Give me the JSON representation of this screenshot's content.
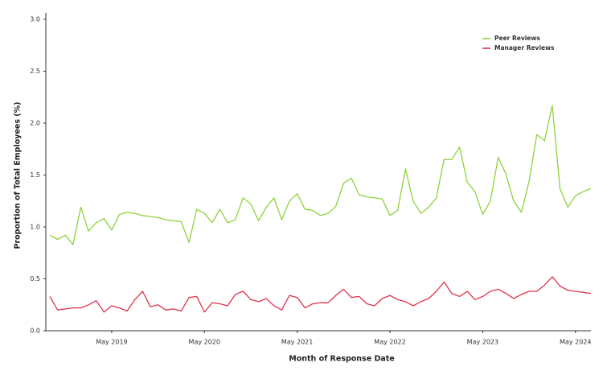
{
  "chart_data": {
    "type": "line",
    "x_label": "Month of Response Date",
    "y_label": "Proportion of Total Employees (%)",
    "x": [
      "2018-09",
      "2018-10",
      "2018-11",
      "2018-12",
      "2019-01",
      "2019-02",
      "2019-03",
      "2019-04",
      "2019-05",
      "2019-06",
      "2019-07",
      "2019-08",
      "2019-09",
      "2019-10",
      "2019-11",
      "2019-12",
      "2020-01",
      "2020-02",
      "2020-03",
      "2020-04",
      "2020-05",
      "2020-06",
      "2020-07",
      "2020-08",
      "2020-09",
      "2020-10",
      "2020-11",
      "2020-12",
      "2021-01",
      "2021-02",
      "2021-03",
      "2021-04",
      "2021-05",
      "2021-06",
      "2021-07",
      "2021-08",
      "2021-09",
      "2021-10",
      "2021-11",
      "2021-12",
      "2022-01",
      "2022-02",
      "2022-03",
      "2022-04",
      "2022-05",
      "2022-06",
      "2022-07",
      "2022-08",
      "2022-09",
      "2022-10",
      "2022-11",
      "2022-12",
      "2023-01",
      "2023-02",
      "2023-03",
      "2023-04",
      "2023-05",
      "2023-06",
      "2023-07",
      "2023-08",
      "2023-09",
      "2023-10",
      "2023-11",
      "2023-12",
      "2024-01",
      "2024-02",
      "2024-03",
      "2024-04",
      "2024-05",
      "2024-06",
      "2024-07"
    ],
    "series": [
      {
        "name": "Peer Reviews",
        "color": "#8ed33c",
        "values": [
          0.92,
          0.88,
          0.92,
          0.83,
          1.19,
          0.96,
          1.04,
          1.08,
          0.97,
          1.12,
          1.14,
          1.13,
          1.11,
          1.1,
          1.09,
          1.07,
          1.06,
          1.05,
          0.85,
          1.17,
          1.13,
          1.04,
          1.17,
          1.04,
          1.07,
          1.28,
          1.22,
          1.06,
          1.19,
          1.28,
          1.07,
          1.25,
          1.32,
          1.17,
          1.16,
          1.11,
          1.13,
          1.2,
          1.42,
          1.47,
          1.31,
          1.29,
          1.28,
          1.27,
          1.11,
          1.16,
          1.56,
          1.25,
          1.13,
          1.19,
          1.28,
          1.65,
          1.65,
          1.77,
          1.43,
          1.34,
          1.12,
          1.25,
          1.67,
          1.51,
          1.25,
          1.14,
          1.44,
          1.89,
          1.83,
          2.17,
          1.37,
          1.19,
          1.3,
          1.34,
          1.37
        ]
      },
      {
        "name": "Manager Reviews",
        "color": "#e0334c",
        "values": [
          0.33,
          0.2,
          0.21,
          0.22,
          0.22,
          0.25,
          0.29,
          0.18,
          0.24,
          0.22,
          0.19,
          0.3,
          0.38,
          0.23,
          0.25,
          0.2,
          0.21,
          0.19,
          0.32,
          0.33,
          0.18,
          0.27,
          0.26,
          0.24,
          0.35,
          0.38,
          0.3,
          0.28,
          0.31,
          0.24,
          0.2,
          0.34,
          0.32,
          0.22,
          0.26,
          0.27,
          0.27,
          0.34,
          0.4,
          0.32,
          0.33,
          0.26,
          0.24,
          0.31,
          0.34,
          0.3,
          0.28,
          0.24,
          0.28,
          0.31,
          0.38,
          0.47,
          0.36,
          0.33,
          0.38,
          0.3,
          0.33,
          0.38,
          0.4,
          0.36,
          0.31,
          0.35,
          0.38,
          0.38,
          0.44,
          0.52,
          0.43,
          0.39,
          0.38,
          0.37,
          0.36
        ]
      }
    ],
    "xlim": [
      "2018-09",
      "2024-07"
    ],
    "xticks": [
      {
        "value": "2019-05",
        "label": "May 2019"
      },
      {
        "value": "2020-05",
        "label": "May 2020"
      },
      {
        "value": "2021-05",
        "label": "May 2021"
      },
      {
        "value": "2022-05",
        "label": "May 2022"
      },
      {
        "value": "2023-05",
        "label": "May 2023"
      },
      {
        "value": "2024-05",
        "label": "May 2024"
      }
    ],
    "ylim": [
      0,
      3
    ],
    "yticks": [
      {
        "value": 0,
        "label": "0.0"
      },
      0.5,
      {
        "value": 1,
        "label": "1.0"
      },
      1.5,
      {
        "value": 2,
        "label": "2.0"
      },
      2.5,
      {
        "value": 3,
        "label": "3.0"
      }
    ],
    "grid": false,
    "legend": "upper right"
  }
}
